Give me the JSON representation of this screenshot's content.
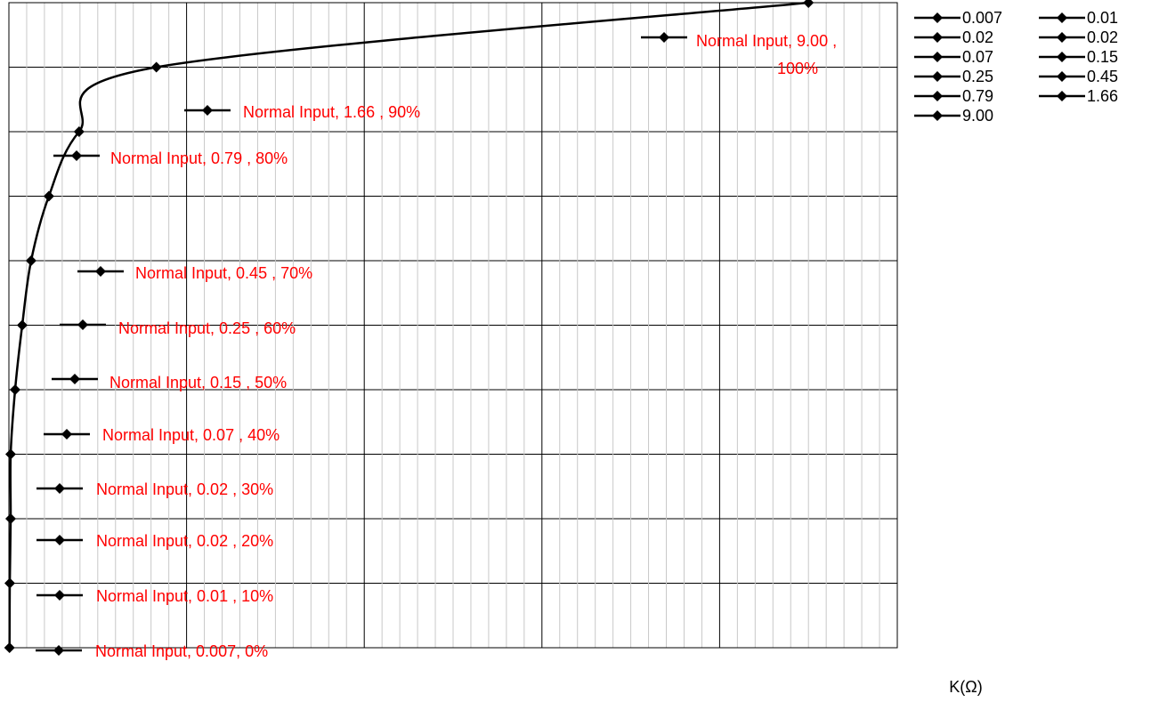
{
  "chart_data": {
    "type": "scatter",
    "xlabel": "K(Ω)",
    "ylabel": "",
    "xlim": [
      0,
      10
    ],
    "ylim": [
      0,
      1
    ],
    "grid": true,
    "legend_position": "right",
    "colors": {
      "line": "#000000",
      "label": "#ff0000",
      "grid_major": "#000000",
      "grid_minor": "#c8c8c8"
    },
    "points": [
      {
        "x": 0.007,
        "y": 0.0,
        "legend": "0.007",
        "label": "Normal Input, 0.007, 0%"
      },
      {
        "x": 0.01,
        "y": 0.1,
        "legend": "0.01",
        "label": "Normal Input, 0.01 , 10%"
      },
      {
        "x": 0.02,
        "y": 0.2,
        "legend": "0.02",
        "label": "Normal Input, 0.02 , 20%"
      },
      {
        "x": 0.02,
        "y": 0.3,
        "legend": "0.02",
        "label": "Normal Input, 0.02 , 30%"
      },
      {
        "x": 0.07,
        "y": 0.4,
        "legend": "0.07",
        "label": "Normal Input, 0.07 , 40%"
      },
      {
        "x": 0.15,
        "y": 0.5,
        "legend": "0.15",
        "label": "Normal Input, 0.15 , 50%"
      },
      {
        "x": 0.25,
        "y": 0.6,
        "legend": "0.25",
        "label": "Normal Input, 0.25 , 60%"
      },
      {
        "x": 0.45,
        "y": 0.7,
        "legend": "0.45",
        "label": "Normal Input, 0.45 , 70%"
      },
      {
        "x": 0.79,
        "y": 0.8,
        "legend": "0.79",
        "label": "Normal Input, 0.79 , 80%"
      },
      {
        "x": 1.66,
        "y": 0.9,
        "legend": "1.66",
        "label": "Normal Input, 1.66 , 90%"
      },
      {
        "x": 9.0,
        "y": 1.0,
        "legend": "9.00",
        "label": "Normal Input, 9.00 , 100%"
      }
    ]
  }
}
